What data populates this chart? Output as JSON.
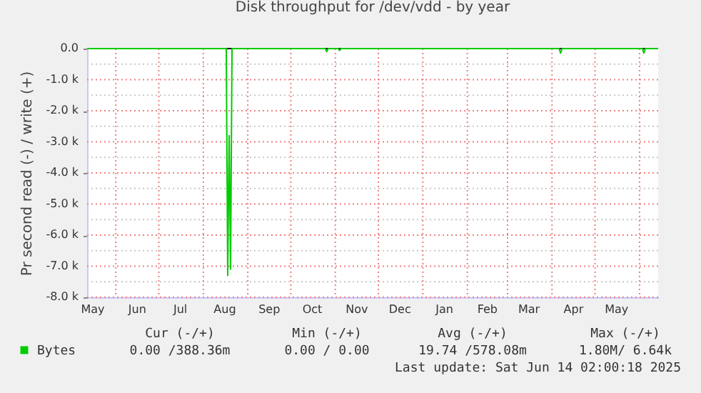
{
  "chart_data": {
    "type": "line",
    "title": "Disk throughput for /dev/vdd - by year",
    "ylabel": "Pr second read (-) / write (+)",
    "x": [
      "2024-05-12",
      "2024-08-17",
      "2024-08-18",
      "2024-08-19",
      "2024-08-20",
      "2024-08-21",
      "2024-10-25",
      "2024-10-26",
      "2024-10-27",
      "2024-11-03",
      "2024-11-04",
      "2024-11-05",
      "2025-04-06",
      "2025-04-07",
      "2025-04-08",
      "2025-06-03",
      "2025-06-04",
      "2025-06-05",
      "2025-06-14"
    ],
    "series": [
      {
        "name": "Bytes",
        "color": "#00cc00",
        "values": [
          0,
          0,
          -7300,
          -2800,
          -7100,
          0,
          0,
          -100,
          0,
          0,
          -60,
          0,
          0,
          -150,
          0,
          0,
          -150,
          0,
          0
        ]
      }
    ],
    "xlim": [
      "2024-05-12",
      "2025-06-14"
    ],
    "xticks": [
      {
        "value": "2024-05-16",
        "label": "May"
      },
      {
        "value": "2024-06-16",
        "label": "Jun"
      },
      {
        "value": "2024-07-16",
        "label": "Jul"
      },
      {
        "value": "2024-08-16",
        "label": "Aug"
      },
      {
        "value": "2024-09-16",
        "label": "Sep"
      },
      {
        "value": "2024-10-16",
        "label": "Oct"
      },
      {
        "value": "2024-11-16",
        "label": "Nov"
      },
      {
        "value": "2024-12-16",
        "label": "Dec"
      },
      {
        "value": "2025-01-16",
        "label": "Jan"
      },
      {
        "value": "2025-02-15",
        "label": "Feb"
      },
      {
        "value": "2025-03-16",
        "label": "Mar"
      },
      {
        "value": "2025-04-16",
        "label": "Apr"
      },
      {
        "value": "2025-05-16",
        "label": "May"
      },
      {
        "value": "2024-06-01",
        "label": null
      },
      {
        "value": "2024-07-01",
        "label": null
      },
      {
        "value": "2024-08-01",
        "label": null
      },
      {
        "value": "2024-09-01",
        "label": null
      },
      {
        "value": "2024-10-01",
        "label": null
      },
      {
        "value": "2024-11-01",
        "label": null
      },
      {
        "value": "2024-12-01",
        "label": null
      },
      {
        "value": "2025-01-01",
        "label": null
      },
      {
        "value": "2025-02-01",
        "label": null
      },
      {
        "value": "2025-03-01",
        "label": null
      },
      {
        "value": "2025-04-01",
        "label": null
      },
      {
        "value": "2025-05-01",
        "label": null
      },
      {
        "value": "2025-06-01",
        "label": null
      }
    ],
    "ylim": [
      -8000,
      0
    ],
    "yticks": [
      {
        "value": -8000,
        "label": "-8.0 k"
      },
      {
        "value": -7000,
        "label": "-7.0 k"
      },
      {
        "value": -6000,
        "label": "-6.0 k"
      },
      {
        "value": -5000,
        "label": "-5.0 k"
      },
      {
        "value": -4000,
        "label": "-4.0 k"
      },
      {
        "value": -3000,
        "label": "-3.0 k"
      },
      {
        "value": -2000,
        "label": "-2.0 k"
      },
      {
        "value": -1000,
        "label": "-1.0 k"
      },
      {
        "value": 0,
        "label": "0.0"
      },
      {
        "value": -7500,
        "label": null
      },
      {
        "value": -6500,
        "label": null
      },
      {
        "value": -5500,
        "label": null
      },
      {
        "value": -4500,
        "label": null
      },
      {
        "value": -3500,
        "label": null
      },
      {
        "value": -2500,
        "label": null
      },
      {
        "value": -1500,
        "label": null
      },
      {
        "value": -500,
        "label": null
      }
    ],
    "ref_lines": [
      {
        "axis": "y",
        "value": 0,
        "color": "#000000"
      }
    ],
    "grid": true,
    "legend": "bottom",
    "marker": "none",
    "line_style": "solid",
    "annotations": [
      "Cur (-/+)",
      "Min (-/+)",
      "Avg (-/+)",
      "Max (-/+)",
      "0.00 /388.36m",
      "0.00 /  0.00",
      "19.74 /578.08m",
      "1.80M/  6.64k",
      "Last update: Sat Jun 14 02:00:18 2025"
    ]
  }
}
